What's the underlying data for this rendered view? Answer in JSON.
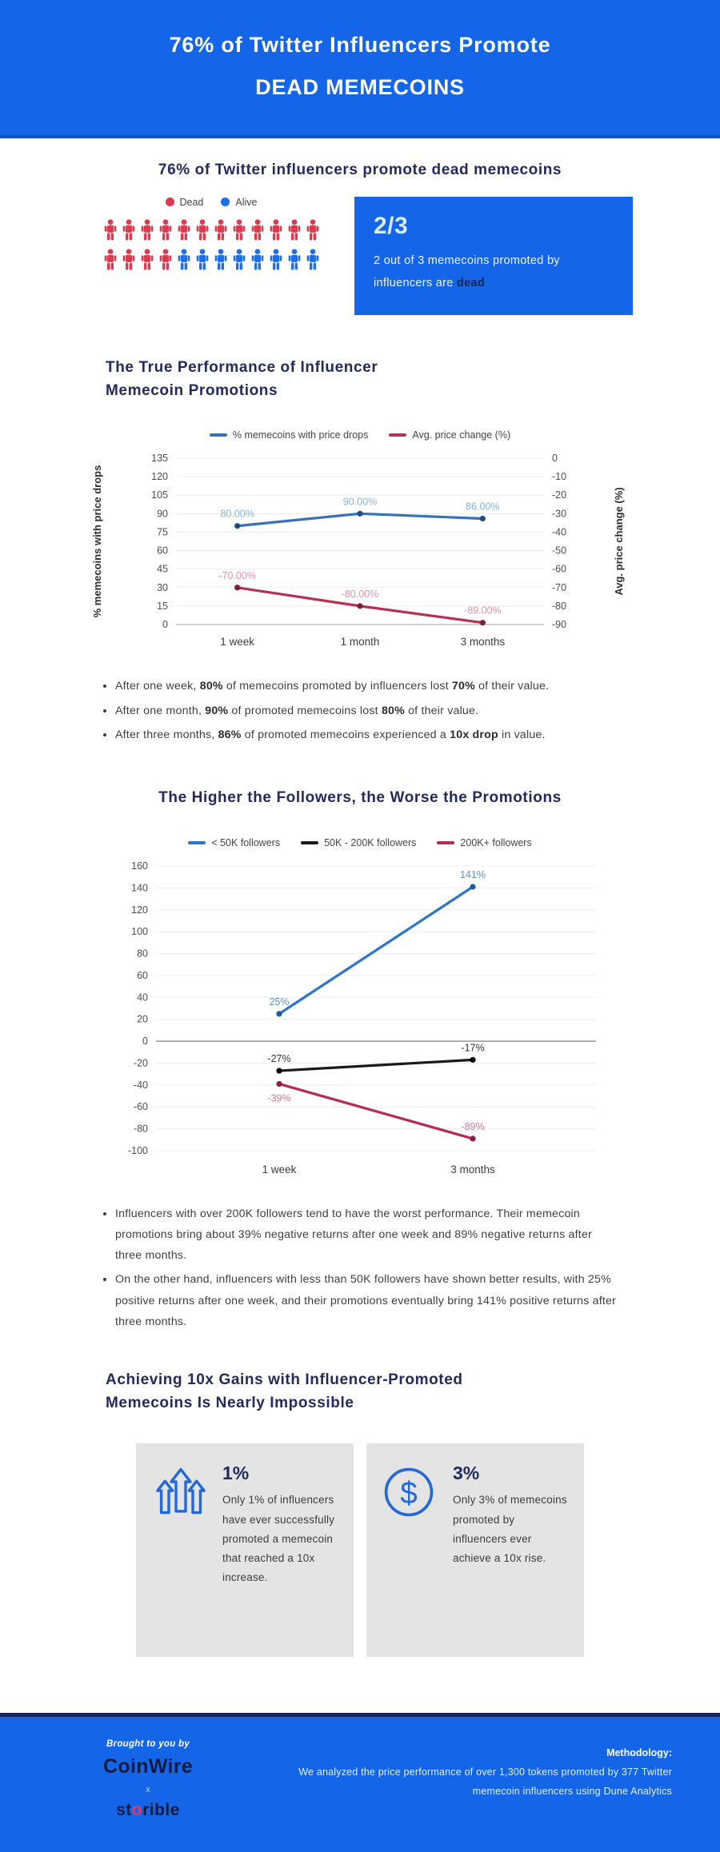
{
  "colors": {
    "accent_blue": "#1565e8",
    "navy": "#232a5e",
    "dead_red": "#dc3a4e",
    "alive_blue": "#1d6fe8"
  },
  "header": {
    "title_line1": "76% of Twitter Influencers Promote",
    "title_line2": "DEAD MEMECOINS"
  },
  "intro": {
    "heading": "76% of Twitter influencers promote dead memecoins",
    "legend": [
      {
        "label": "Dead",
        "color": "#dc3a4e"
      },
      {
        "label": "Alive",
        "color": "#1d6fe8"
      }
    ],
    "pictogram_rows": [
      [
        "dead",
        "dead",
        "dead",
        "dead",
        "dead",
        "dead",
        "dead",
        "dead",
        "dead",
        "dead",
        "dead",
        "dead"
      ],
      [
        "dead",
        "dead",
        "dead",
        "dead",
        "alive",
        "alive",
        "alive",
        "alive",
        "alive",
        "alive",
        "alive",
        "alive"
      ]
    ],
    "callout": {
      "stat": "2/3",
      "text": "2 out of 3 memecoins promoted by influencers are ",
      "highlight": "dead"
    }
  },
  "performance_section": {
    "heading_line1": "The True Performance of Influencer",
    "heading_line2": "Memecoin Promotions",
    "bullets": [
      [
        {
          "t": "After one week, "
        },
        {
          "t": "80%",
          "b": true
        },
        {
          "t": " of memecoins promoted by influencers lost "
        },
        {
          "t": "70%",
          "b": true
        },
        {
          "t": " of their value."
        }
      ],
      [
        {
          "t": "After one month, "
        },
        {
          "t": "90%",
          "b": true
        },
        {
          "t": " of promoted memecoins lost "
        },
        {
          "t": "80%",
          "b": true
        },
        {
          "t": " of their value."
        }
      ],
      [
        {
          "t": "After three months, "
        },
        {
          "t": "86%",
          "b": true
        },
        {
          "t": " of promoted memecoins experienced a "
        },
        {
          "t": "10x drop",
          "b": true
        },
        {
          "t": " in value."
        }
      ]
    ]
  },
  "followers_section": {
    "heading": "The Higher the Followers, the Worse the Promotions",
    "bullets": [
      [
        {
          "t": "Influencers with over 200K followers tend to have the worst performance. Their memecoin promotions bring about 39% negative returns after one week and 89% negative returns after three months."
        }
      ],
      [
        {
          "t": "On the other hand, influencers with less than 50K followers have shown better results, with 25% positive returns after one week, and their promotions eventually bring 141% positive returns after three months."
        }
      ]
    ]
  },
  "gains_section": {
    "heading_line1": "Achieving 10x Gains with Influencer-Promoted",
    "heading_line2": "Memecoins Is Nearly Impossible",
    "cards": [
      {
        "icon": "arrows-up-icon",
        "stat": "1%",
        "text": "Only 1% of influencers have ever successfully promoted a memecoin that reached a 10x increase."
      },
      {
        "icon": "dollar-circle-icon",
        "stat": "3%",
        "text": "Only 3% of memecoins promoted by influencers ever achieve a 10x rise."
      }
    ]
  },
  "footer": {
    "brought": "Brought to you by",
    "brand_primary": "CoinWire",
    "collab_x": "x",
    "brand_secondary": {
      "pre": "st",
      "accent": "o",
      "post": "rible"
    },
    "methodology_label": "Methodology:",
    "methodology_text": "We analyzed the price performance of over 1,300 tokens promoted by 377 Twitter memecoin influencers using Dune Analytics"
  },
  "chart_data": [
    {
      "type": "line",
      "title": "The True Performance of Influencer Memecoin Promotions",
      "categories": [
        "1 week",
        "1 month",
        "3 months"
      ],
      "series": [
        {
          "name": "% memecoins with price drops",
          "axis": "left",
          "color": "#3572b9",
          "point_color": "#1d4e89",
          "values": [
            80,
            90,
            86
          ],
          "labels": [
            "80.00%",
            "90.00%",
            "86.00%"
          ],
          "label_color": "#85b3e2",
          "label_pos": [
            "above",
            "above",
            "above"
          ]
        },
        {
          "name": "Avg. price change (%)",
          "axis": "right",
          "color": "#b43252",
          "point_color": "#7e1f38",
          "values": [
            -70,
            -80,
            -89
          ],
          "labels": [
            "-70.00%",
            "-80.00%",
            "-89.00%"
          ],
          "label_color": "#e592a7",
          "label_pos": [
            "above",
            "above",
            "above"
          ]
        }
      ],
      "left_axis": {
        "label": "% memecoins with price drops",
        "min": 0,
        "max": 135,
        "step": 15
      },
      "right_axis": {
        "label": "Avg. price change (%)",
        "min": -90,
        "max": 0,
        "step": 10
      },
      "grid": true,
      "legend_position": "top"
    },
    {
      "type": "line",
      "title": "The Higher the Followers, the Worse the Promotions",
      "categories": [
        "1 week",
        "3 months"
      ],
      "series": [
        {
          "name": "< 50K followers",
          "color": "#2b76c9",
          "point_color": "#1d5aa8",
          "values": [
            25,
            141
          ],
          "labels": [
            "25%",
            "141%"
          ],
          "label_color": "#5b8fd8",
          "label_pos": [
            "above",
            "above"
          ]
        },
        {
          "name": "50K - 200K followers",
          "color": "#1a1a1a",
          "point_color": "#000000",
          "values": [
            -27,
            -17
          ],
          "labels": [
            "-27%",
            "-17%"
          ],
          "label_color": "#333333",
          "label_pos": [
            "above",
            "above"
          ]
        },
        {
          "name": "200K+ followers",
          "color": "#b52b52",
          "point_color": "#8c1f3d",
          "values": [
            -39,
            -89
          ],
          "labels": [
            "-39%",
            "-89%"
          ],
          "label_color": "#d2798f",
          "label_pos": [
            "below",
            "above"
          ]
        }
      ],
      "y_axis": {
        "min": -100,
        "max": 160,
        "step": 20
      },
      "grid": true,
      "legend_position": "top"
    }
  ]
}
